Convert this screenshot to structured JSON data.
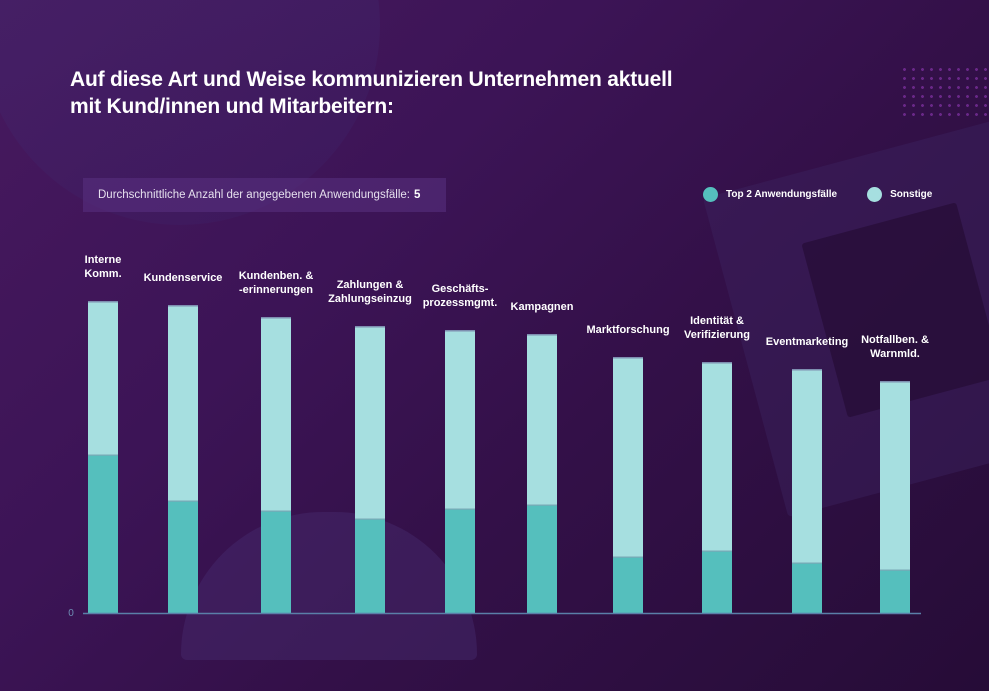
{
  "header": {
    "title_line1": "Auf diese Art und Weise kommunizieren Unternehmen aktuell",
    "title_line2": "mit Kund/innen und Mitarbeitern:"
  },
  "info": {
    "label": "Durchschnittliche Anzahl der angegebenen Anwendungsfälle:",
    "value": "5"
  },
  "legend": {
    "items": [
      {
        "label": "Top 2 Anwendungsfälle",
        "color": "#55bfbd"
      },
      {
        "label": "Sonstige",
        "color": "#a6dfe0"
      }
    ]
  },
  "colors": {
    "top2": "#55bfbd",
    "others": "#a6dfe0",
    "axis": "#5a7fa8",
    "zero_label": "#6f8fb5"
  },
  "chart_data": {
    "type": "bar",
    "stacked": true,
    "title": "Auf diese Art und Weise kommunizieren Unternehmen aktuell mit Kund/innen und Mitarbeitern:",
    "xlabel": "",
    "ylabel": "",
    "ylim": [
      0,
      100
    ],
    "y_ticks": [
      "0"
    ],
    "grid": false,
    "legend_position": "top-right",
    "categories": [
      [
        "Interne",
        "Komm."
      ],
      [
        "Kundenservice"
      ],
      [
        "Kundenben. &",
        "-erinnerungen"
      ],
      [
        "Zahlungen &",
        "Zahlungseinzug"
      ],
      [
        "Geschäfts-",
        "prozessmgmt."
      ],
      [
        "Kampagnen"
      ],
      [
        "Marktforschung"
      ],
      [
        "Identität &",
        "Verifizierung"
      ],
      [
        "Eventmarketing"
      ],
      [
        "Notfallben. &",
        "Warnmld."
      ]
    ],
    "series": [
      {
        "name": "Top 2 Anwendungsfälle",
        "values": [
          39.5,
          28,
          25.5,
          23.5,
          26,
          27,
          14,
          15.5,
          12.5,
          10.75
        ]
      },
      {
        "name": "Sonstige",
        "values": [
          38.5,
          49,
          48.5,
          48.25,
          44.75,
          42.75,
          50,
          47.25,
          48.5,
          47.25
        ]
      }
    ]
  }
}
